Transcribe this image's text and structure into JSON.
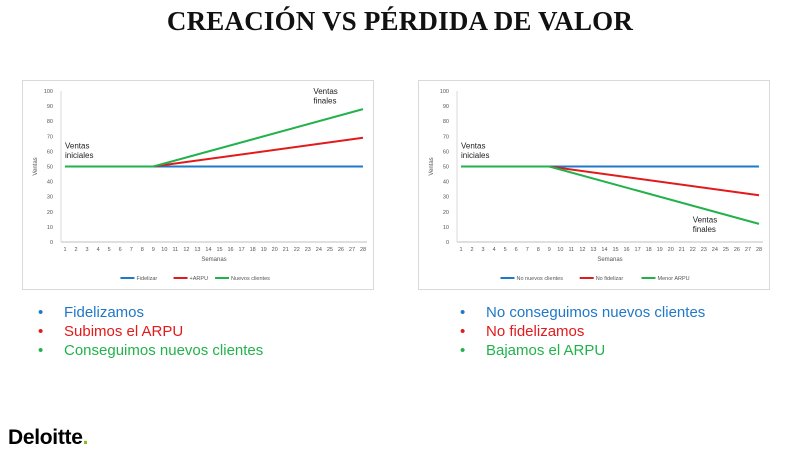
{
  "title": "CREACIÓN VS PÉRDIDA DE VALOR",
  "colors": {
    "blue": "#1f78c8",
    "red": "#e31a1c",
    "green": "#22b24c"
  },
  "chart_data": [
    {
      "type": "line",
      "xlabel": "Semanas",
      "ylabel": "Ventas",
      "ylim": [
        0,
        100
      ],
      "yticks": [
        0,
        10,
        20,
        30,
        40,
        50,
        60,
        70,
        80,
        90,
        100
      ],
      "x": [
        1,
        2,
        3,
        4,
        5,
        6,
        7,
        8,
        9,
        10,
        11,
        12,
        13,
        14,
        15,
        16,
        17,
        18,
        19,
        20,
        21,
        22,
        23,
        24,
        25,
        26,
        27,
        28
      ],
      "series": [
        {
          "name": "Fidelizar",
          "color": "#1f78c8",
          "points": [
            [
              1,
              50
            ],
            [
              28,
              50
            ]
          ]
        },
        {
          "name": "+ARPU",
          "color": "#e31a1c",
          "points": [
            [
              1,
              50
            ],
            [
              9,
              50
            ],
            [
              28,
              69
            ]
          ]
        },
        {
          "name": "Nuevos clientes",
          "color": "#22b24c",
          "points": [
            [
              1,
              50
            ],
            [
              9,
              50
            ],
            [
              28,
              88
            ]
          ]
        }
      ],
      "annotations": [
        {
          "lines": [
            "Ventas",
            "iniciales"
          ],
          "x": 1,
          "y": 62
        },
        {
          "lines": [
            "Ventas",
            "finales"
          ],
          "x": 23.5,
          "y": 98
        }
      ],
      "legend": "bottom",
      "grid": false
    },
    {
      "type": "line",
      "xlabel": "Semanas",
      "ylabel": "Ventas",
      "ylim": [
        0,
        100
      ],
      "yticks": [
        0,
        10,
        20,
        30,
        40,
        50,
        60,
        70,
        80,
        90,
        100
      ],
      "x": [
        1,
        2,
        3,
        4,
        5,
        6,
        7,
        8,
        9,
        10,
        11,
        12,
        13,
        14,
        15,
        16,
        17,
        18,
        19,
        20,
        21,
        22,
        23,
        24,
        25,
        26,
        27,
        28
      ],
      "series": [
        {
          "name": "No nuevos clientes",
          "color": "#1f78c8",
          "points": [
            [
              1,
              50
            ],
            [
              28,
              50
            ]
          ]
        },
        {
          "name": "No fidelizar",
          "color": "#e31a1c",
          "points": [
            [
              1,
              50
            ],
            [
              9,
              50
            ],
            [
              28,
              31
            ]
          ]
        },
        {
          "name": "Menor ARPU",
          "color": "#22b24c",
          "points": [
            [
              1,
              50
            ],
            [
              9,
              50
            ],
            [
              28,
              12
            ]
          ]
        }
      ],
      "annotations": [
        {
          "lines": [
            "Ventas",
            "iniciales"
          ],
          "x": 1,
          "y": 62
        },
        {
          "lines": [
            "Ventas",
            "finales"
          ],
          "x": 22,
          "y": 13
        }
      ],
      "legend": "bottom",
      "grid": false
    }
  ],
  "bullets_left": [
    {
      "text": "Fidelizamos",
      "color": "#1f78c8"
    },
    {
      "text": "Subimos el ARPU",
      "color": "#e31a1c"
    },
    {
      "text": "Conseguimos nuevos clientes",
      "color": "#22b24c"
    }
  ],
  "bullets_right": [
    {
      "text": "No conseguimos nuevos clientes",
      "color": "#1f78c8"
    },
    {
      "text": "No fidelizamos",
      "color": "#e31a1c"
    },
    {
      "text": "Bajamos el ARPU",
      "color": "#22b24c"
    }
  ],
  "logo": {
    "text": "Deloitte",
    "dot": ".",
    "dot_color": "#86bc25"
  }
}
